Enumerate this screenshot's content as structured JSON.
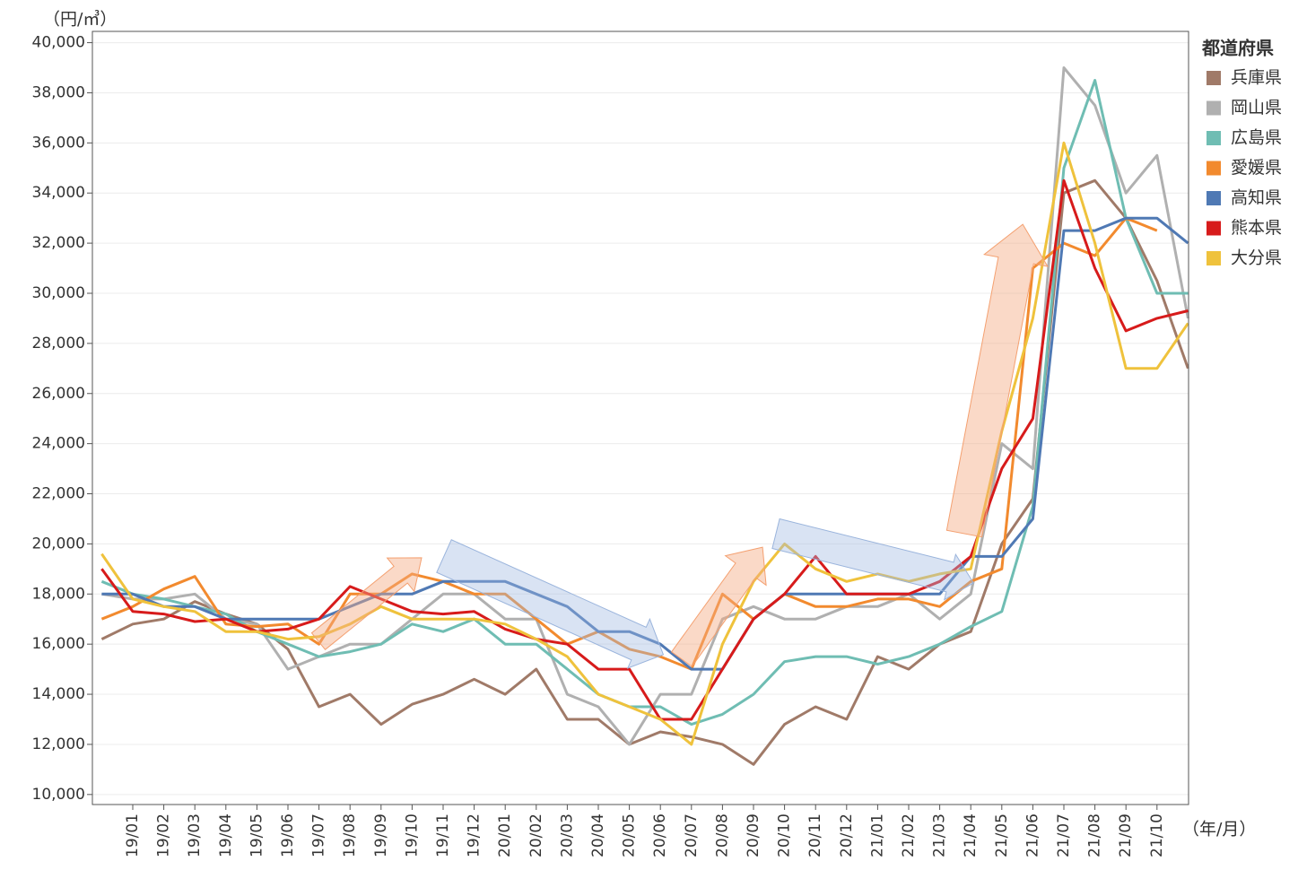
{
  "chart_data": {
    "type": "line",
    "y_label": "（円/㎥）",
    "x_label": "（年/月）",
    "legend_title": "都道府県",
    "categories": [
      null,
      "19/01",
      "19/02",
      "19/03",
      "19/04",
      "19/05",
      "19/06",
      "19/07",
      "19/08",
      "19/09",
      "19/10",
      "19/11",
      "19/12",
      "20/01",
      "20/02",
      "20/03",
      "20/04",
      "20/05",
      "20/06",
      "20/07",
      "20/08",
      "20/09",
      "20/10",
      "20/11",
      "20/12",
      "21/01",
      "21/02",
      "21/03",
      "21/04",
      "21/05",
      "21/06",
      "21/07",
      "21/08",
      "21/09",
      "21/10",
      null
    ],
    "series": [
      {
        "name": "兵庫県",
        "color": "#a07a68",
        "values": [
          16200,
          16800,
          17000,
          17700,
          17200,
          16800,
          15800,
          13500,
          14000,
          12800,
          13600,
          14000,
          14600,
          14000,
          15000,
          13000,
          13000,
          12000,
          12500,
          12300,
          12000,
          11200,
          12800,
          13500,
          13000,
          15500,
          15000,
          16000,
          16500,
          20000,
          21800,
          34000,
          34500,
          33000,
          30500,
          27000
        ]
      },
      {
        "name": "岡山県",
        "color": "#b0b0b0",
        "values": [
          18000,
          17800,
          17800,
          18000,
          17000,
          16800,
          15000,
          15500,
          16000,
          16000,
          17000,
          18000,
          18000,
          17000,
          17000,
          14000,
          13500,
          12000,
          14000,
          14000,
          17000,
          17500,
          17000,
          17000,
          17500,
          17500,
          18000,
          17000,
          18000,
          24000,
          23000,
          39000,
          37500,
          34000,
          35500,
          29000
        ]
      },
      {
        "name": "広島県",
        "color": "#6fbdb3",
        "values": [
          18500,
          18000,
          17800,
          17500,
          17200,
          16500,
          16000,
          15500,
          15700,
          16000,
          16800,
          16500,
          17000,
          16000,
          16000,
          15000,
          14000,
          13500,
          13500,
          12800,
          13200,
          14000,
          15300,
          15500,
          15500,
          15200,
          15500,
          16000,
          16700,
          17300,
          21500,
          35000,
          38500,
          33000,
          30000,
          30000
        ]
      },
      {
        "name": "愛媛県",
        "color": "#f28a2e",
        "values": [
          17000,
          17500,
          18200,
          18700,
          16800,
          16700,
          16800,
          16000,
          18000,
          18000,
          18800,
          18500,
          18000,
          18000,
          17000,
          16000,
          16500,
          15800,
          15500,
          15000,
          18000,
          17000,
          18000,
          17500,
          17500,
          17800,
          17800,
          17500,
          18500,
          19000,
          31000,
          32000,
          31500,
          33000,
          32500,
          null
        ]
      },
      {
        "name": "高知県",
        "color": "#4f79b4",
        "values": [
          18000,
          18000,
          17500,
          17500,
          17000,
          17000,
          17000,
          17000,
          17500,
          18000,
          18000,
          18500,
          18500,
          18500,
          18000,
          17500,
          16500,
          16500,
          16000,
          15000,
          15000,
          17000,
          18000,
          18000,
          18000,
          18000,
          18000,
          18000,
          19500,
          19500,
          21000,
          32500,
          32500,
          33000,
          33000,
          32000
        ]
      },
      {
        "name": "熊本県",
        "color": "#d71b1b",
        "values": [
          19000,
          17300,
          17200,
          16900,
          17000,
          16500,
          16600,
          17000,
          18300,
          17800,
          17300,
          17200,
          17300,
          16600,
          16200,
          16000,
          15000,
          15000,
          13000,
          13000,
          15000,
          17000,
          18000,
          19500,
          18000,
          18000,
          18000,
          18500,
          19500,
          23000,
          25000,
          34500,
          31000,
          28500,
          29000,
          29300
        ]
      },
      {
        "name": "大分県",
        "color": "#efc23c",
        "values": [
          19600,
          17800,
          17500,
          17300,
          16500,
          16500,
          16200,
          16300,
          16800,
          17500,
          17000,
          17000,
          17000,
          16800,
          16200,
          15500,
          14000,
          13500,
          13000,
          12000,
          16000,
          18500,
          20000,
          19000,
          18500,
          18800,
          18500,
          18800,
          19000,
          24500,
          29000,
          36000,
          32000,
          27000,
          27000,
          28800
        ]
      }
    ],
    "ylim": [
      9600,
      40450
    ],
    "yticks": [
      {
        "value": 10000,
        "label": "10,000"
      },
      {
        "value": 12000,
        "label": "12,000"
      },
      {
        "value": 14000,
        "label": "14,000"
      },
      {
        "value": 16000,
        "label": "16,000"
      },
      {
        "value": 18000,
        "label": "18,000"
      },
      {
        "value": 20000,
        "label": "20,000"
      },
      {
        "value": 22000,
        "label": "22,000"
      },
      {
        "value": 24000,
        "label": "24,000"
      },
      {
        "value": 26000,
        "label": "26,000"
      },
      {
        "value": 28000,
        "label": "28,000"
      },
      {
        "value": 30000,
        "label": "30,000"
      },
      {
        "value": 32000,
        "label": "32,000"
      },
      {
        "value": 34000,
        "label": "34,000"
      },
      {
        "value": 36000,
        "label": "36,000"
      },
      {
        "value": 38000,
        "label": "38,000"
      },
      {
        "value": 40000,
        "label": "40,000"
      }
    ],
    "grid": true
  }
}
